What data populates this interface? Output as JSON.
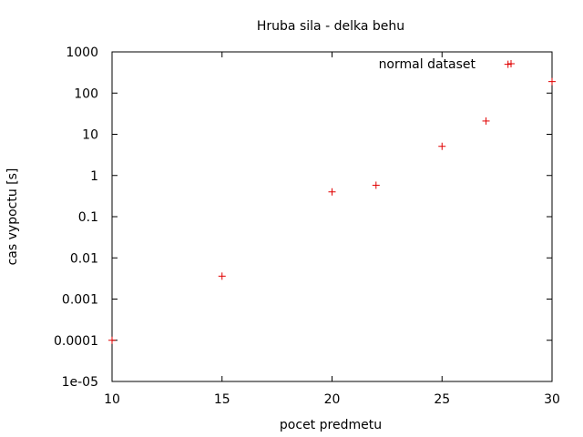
{
  "chart_data": {
    "type": "scatter",
    "title": "Hruba sila - delka behu",
    "xlabel": "pocet predmetu",
    "ylabel": "cas vypoctu [s]",
    "xlim": [
      10,
      30
    ],
    "ylim": [
      1e-05,
      1000
    ],
    "y_scale": "log",
    "x_ticks": [
      "10",
      "15",
      "20",
      "25",
      "30"
    ],
    "y_ticks": [
      "1e-05",
      "0.0001",
      "0.001",
      "0.01",
      "0.1",
      "1",
      "10",
      "100",
      "1000"
    ],
    "grid": false,
    "legend_position": "top-right",
    "series": [
      {
        "name": "normal dataset",
        "color": "#e00000",
        "marker": "plus",
        "x": [
          10,
          15,
          20,
          22,
          25,
          27,
          28,
          30
        ],
        "y": [
          0.0001,
          0.0036,
          0.4,
          0.58,
          5.1,
          21,
          500,
          190
        ]
      }
    ]
  }
}
